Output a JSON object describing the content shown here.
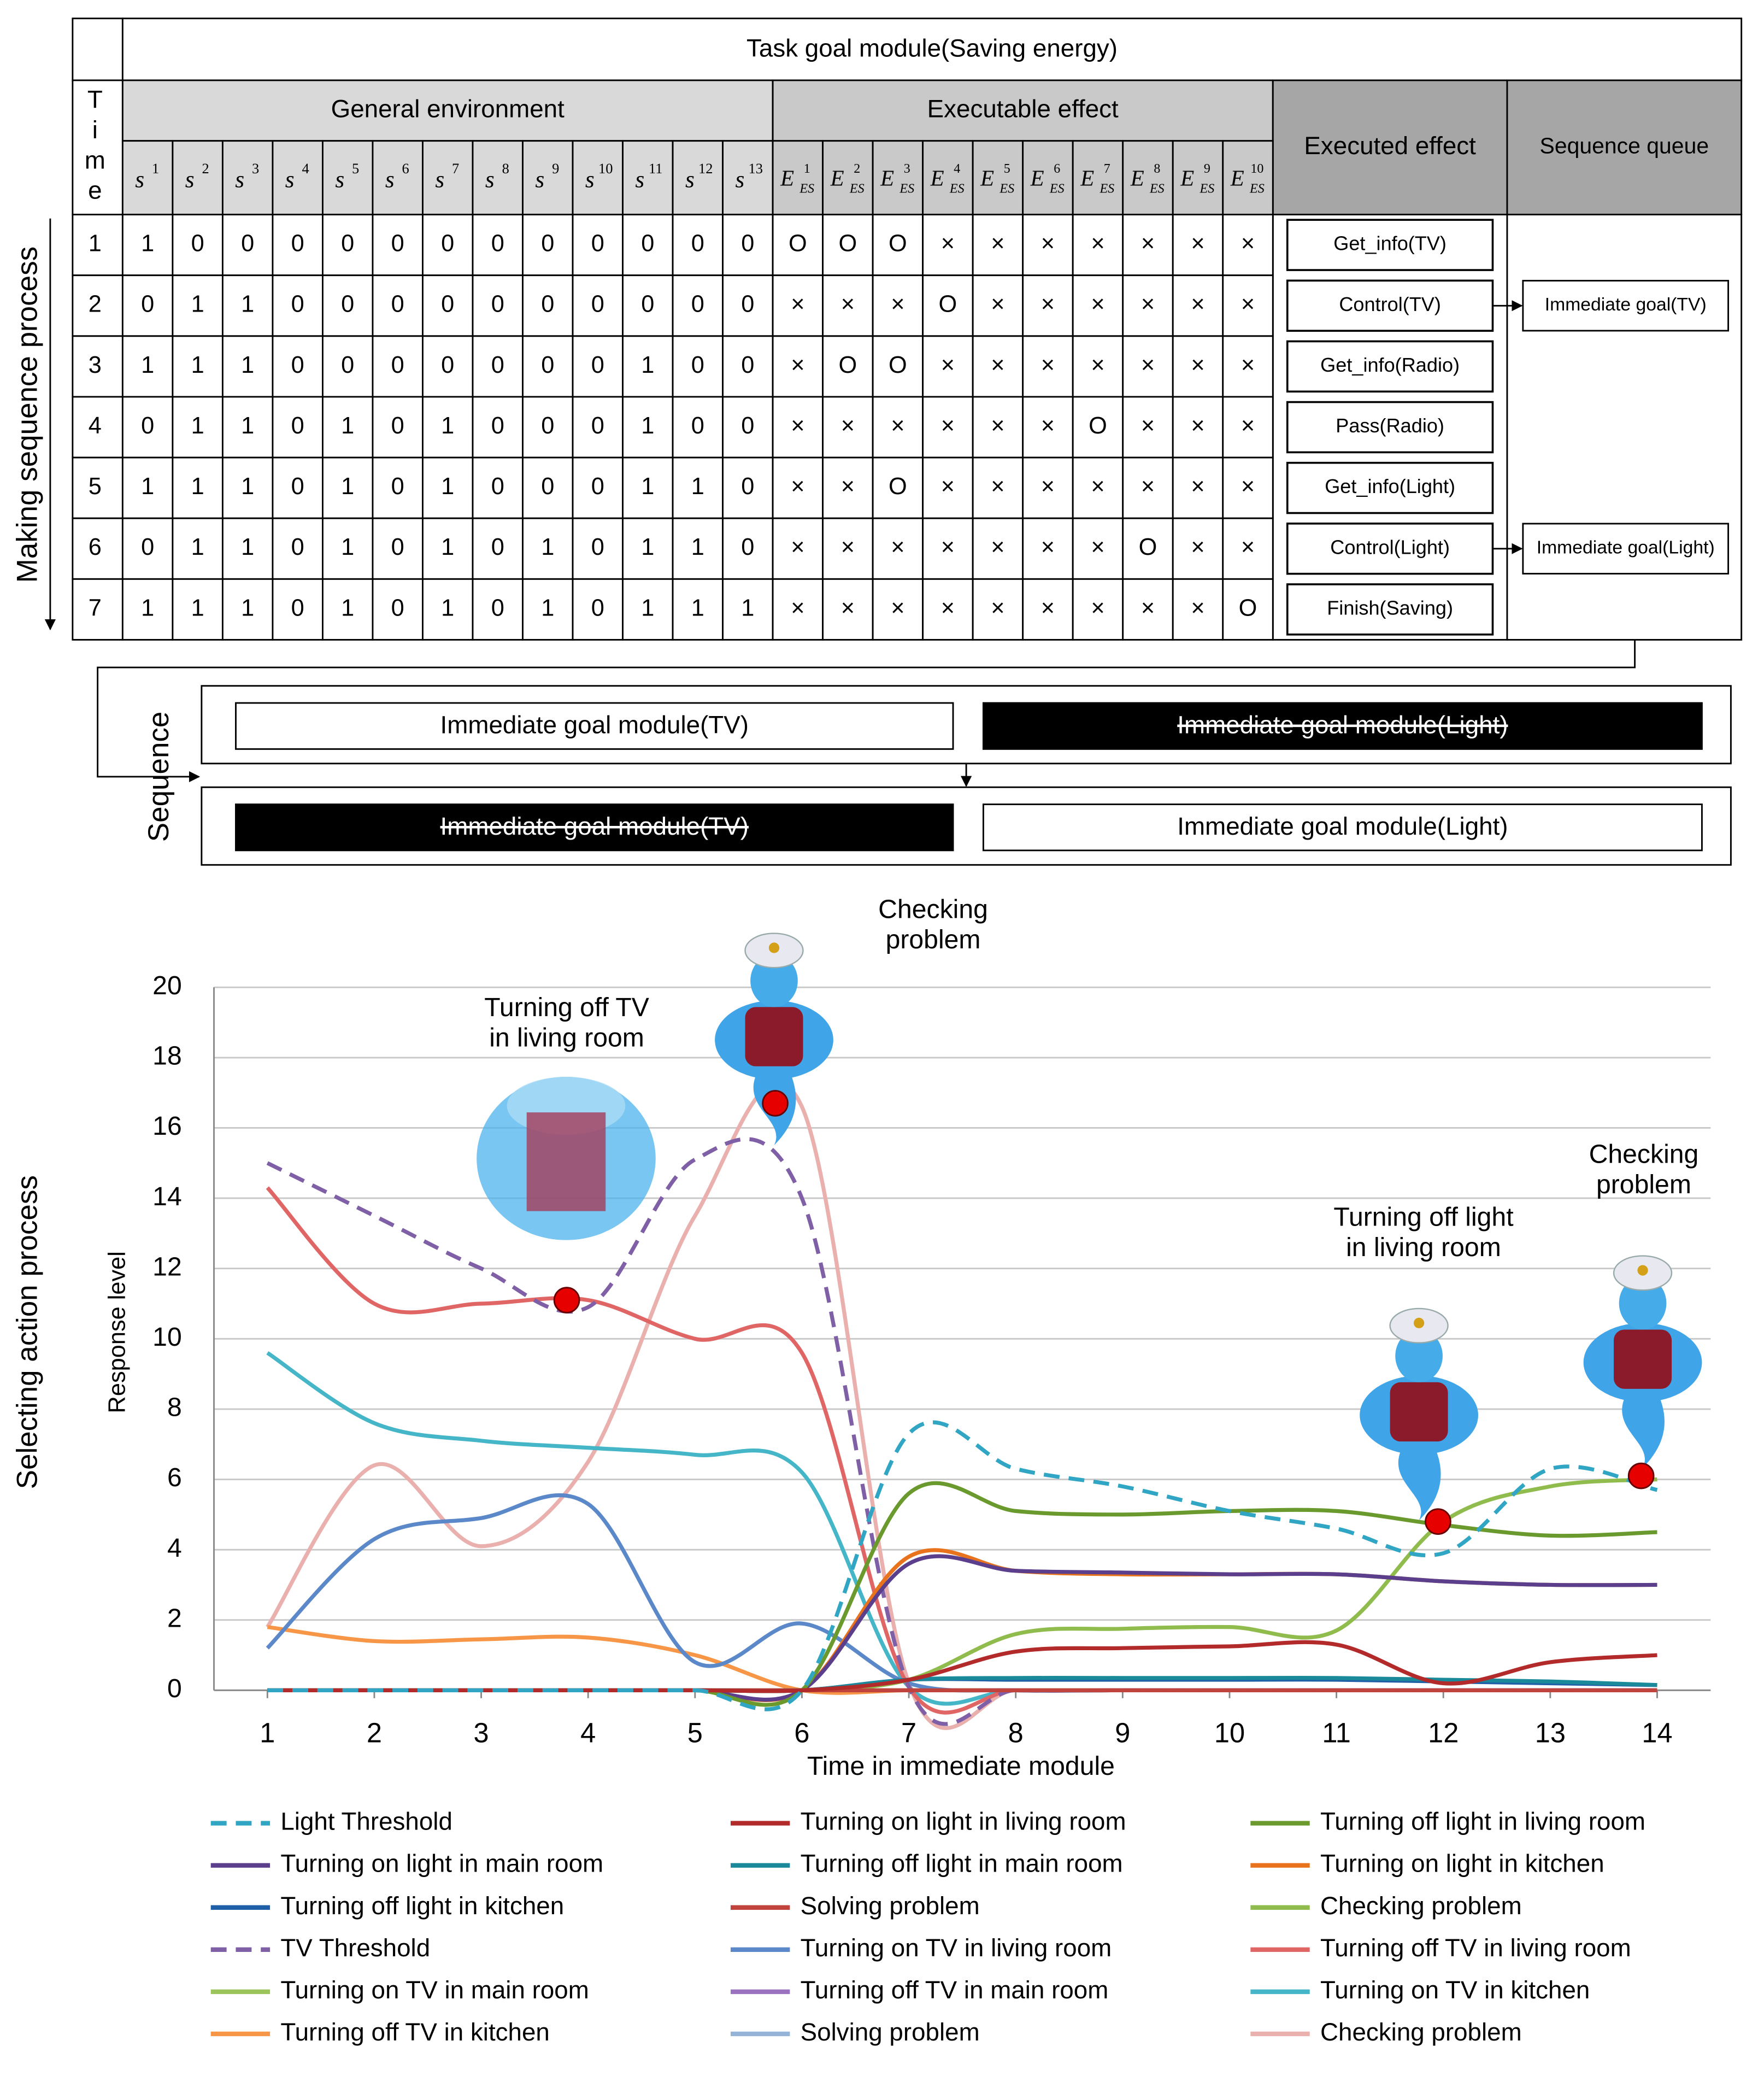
{
  "table": {
    "title": "Task goal module(Saving energy)",
    "time_header": [
      "T",
      "i",
      "m",
      "e"
    ],
    "group_headers": [
      "General environment",
      "Executable effect"
    ],
    "executed_header": "Executed effect",
    "queue_header": "Sequence queue",
    "s_base": "s",
    "s_sups": [
      "1",
      "2",
      "3",
      "4",
      "5",
      "6",
      "7",
      "8",
      "9",
      "10",
      "11",
      "12",
      "13"
    ],
    "e_base": "E",
    "e_sub": "ES",
    "e_sups": [
      "1",
      "2",
      "3",
      "4",
      "5",
      "6",
      "7",
      "8",
      "9",
      "10"
    ],
    "rows": [
      {
        "time": 1,
        "s": [
          1,
          0,
          0,
          0,
          0,
          0,
          0,
          0,
          0,
          0,
          0,
          0,
          0
        ],
        "e": [
          "O",
          "O",
          "O",
          "×",
          "×",
          "×",
          "×",
          "×",
          "×",
          "×"
        ],
        "effect": "Get_info(TV)"
      },
      {
        "time": 2,
        "s": [
          0,
          1,
          1,
          0,
          0,
          0,
          0,
          0,
          0,
          0,
          0,
          0,
          0
        ],
        "e": [
          "×",
          "×",
          "×",
          "O",
          "×",
          "×",
          "×",
          "×",
          "×",
          "×"
        ],
        "effect": "Control(TV)"
      },
      {
        "time": 3,
        "s": [
          1,
          1,
          1,
          0,
          0,
          0,
          0,
          0,
          0,
          0,
          1,
          0,
          0
        ],
        "e": [
          "×",
          "O",
          "O",
          "×",
          "×",
          "×",
          "×",
          "×",
          "×",
          "×"
        ],
        "effect": "Get_info(Radio)"
      },
      {
        "time": 4,
        "s": [
          0,
          1,
          1,
          0,
          1,
          0,
          1,
          0,
          0,
          0,
          1,
          0,
          0
        ],
        "e": [
          "×",
          "×",
          "×",
          "×",
          "×",
          "×",
          "O",
          "×",
          "×",
          "×"
        ],
        "effect": "Pass(Radio)"
      },
      {
        "time": 5,
        "s": [
          1,
          1,
          1,
          0,
          1,
          0,
          1,
          0,
          0,
          0,
          1,
          1,
          0
        ],
        "e": [
          "×",
          "×",
          "O",
          "×",
          "×",
          "×",
          "×",
          "×",
          "×",
          "×"
        ],
        "effect": "Get_info(Light)"
      },
      {
        "time": 6,
        "s": [
          0,
          1,
          1,
          0,
          1,
          0,
          1,
          0,
          1,
          0,
          1,
          1,
          0
        ],
        "e": [
          "×",
          "×",
          "×",
          "×",
          "×",
          "×",
          "×",
          "O",
          "×",
          "×"
        ],
        "effect": "Control(Light)"
      },
      {
        "time": 7,
        "s": [
          1,
          1,
          1,
          0,
          1,
          0,
          1,
          0,
          1,
          0,
          1,
          1,
          1
        ],
        "e": [
          "×",
          "×",
          "×",
          "×",
          "×",
          "×",
          "×",
          "×",
          "×",
          "O"
        ],
        "effect": "Finish(Saving)"
      }
    ],
    "queue": [
      "Immediate goal(TV)",
      "Immediate goal(Light)"
    ]
  },
  "side_labels": {
    "making": "Making sequence process",
    "selecting": "Selecting action process",
    "sequence": "Sequence"
  },
  "sequence": {
    "rows": [
      [
        {
          "label": "Immediate goal module(TV)",
          "done": false
        },
        {
          "label": "Immediate goal module(Light)",
          "done": true
        }
      ],
      [
        {
          "label": "Immediate goal module(TV)",
          "done": true
        },
        {
          "label": "Immediate goal module(Light)",
          "done": false
        }
      ]
    ]
  },
  "chart_data": {
    "type": "line",
    "xlabel": "Time in immediate module",
    "ylabel": "Response level",
    "x": [
      1,
      2,
      3,
      4,
      5,
      6,
      7,
      8,
      9,
      10,
      11,
      12,
      13,
      14
    ],
    "xlim": [
      0.5,
      14.5
    ],
    "xticks": [
      1,
      2,
      3,
      4,
      5,
      6,
      7,
      8,
      9,
      10,
      11,
      12,
      13,
      14
    ],
    "ylim": [
      0,
      20
    ],
    "yticks": [
      0,
      2,
      4,
      6,
      8,
      10,
      12,
      14,
      16,
      18,
      20
    ],
    "grid": true,
    "series": [
      {
        "name": "Light Threshold",
        "color": "#31a6c4",
        "dash": true,
        "values": [
          0,
          0,
          0,
          0,
          0,
          0,
          7.3,
          6.3,
          5.8,
          5.1,
          4.6,
          3.9,
          6.3,
          5.7
        ]
      },
      {
        "name": "Turning on light in living room",
        "color": "#b22a2a",
        "dash": false,
        "values": [
          0,
          0,
          0,
          0,
          0,
          0,
          0.3,
          1.1,
          1.2,
          1.25,
          1.3,
          0.2,
          0.8,
          1.0
        ]
      },
      {
        "name": "Turning off light in living room",
        "color": "#6a9a2e",
        "dash": false,
        "values": [
          0,
          0,
          0,
          0,
          0,
          0,
          5.6,
          5.1,
          5.0,
          5.1,
          5.1,
          4.7,
          4.4,
          4.5
        ]
      },
      {
        "name": "Turning on light in main room",
        "color": "#5b3f8c",
        "dash": false,
        "values": [
          0,
          0,
          0,
          0,
          0,
          0,
          3.6,
          3.4,
          3.35,
          3.3,
          3.3,
          3.1,
          3.0,
          3.0
        ]
      },
      {
        "name": "Turning off light in main room",
        "color": "#1a8a9a",
        "dash": false,
        "values": [
          0,
          0,
          0,
          0,
          0,
          0,
          0.3,
          0.35,
          0.35,
          0.35,
          0.35,
          0.3,
          0.25,
          0.15
        ]
      },
      {
        "name": "Turning on light in kitchen",
        "color": "#e8731c",
        "dash": false,
        "values": [
          0,
          0,
          0,
          0,
          0,
          0,
          3.8,
          3.4,
          3.3,
          3.3,
          3.3,
          3.1,
          3.0,
          3.0
        ]
      },
      {
        "name": "Turning off light in kitchen",
        "color": "#1f5fa8",
        "dash": false,
        "values": [
          0,
          0,
          0,
          0,
          0,
          0,
          0.3,
          0.3,
          0.3,
          0.3,
          0.3,
          0.25,
          0.2,
          0.15
        ]
      },
      {
        "name": "Solving problem",
        "color": "#c0443d",
        "dash": false,
        "values": [
          0,
          0,
          0,
          0,
          0,
          0,
          0,
          0,
          0,
          0,
          0,
          0,
          0,
          0
        ]
      },
      {
        "name": "Checking problem",
        "color": "#8fbc4c",
        "dash": false,
        "values": [
          0,
          0,
          0,
          0,
          0,
          0,
          0.3,
          1.6,
          1.75,
          1.8,
          1.7,
          4.8,
          5.8,
          6.0
        ]
      },
      {
        "name": "TV Threshold",
        "color": "#7f5fa6",
        "dash": true,
        "values": [
          15.0,
          13.5,
          12.0,
          10.9,
          15.1,
          14.0,
          0.1,
          0,
          0,
          0,
          0,
          0,
          0,
          0
        ]
      },
      {
        "name": "Turning on TV in living room",
        "color": "#5b88c8",
        "dash": false,
        "values": [
          1.2,
          4.3,
          4.9,
          5.3,
          0.8,
          1.9,
          0.2,
          0,
          0,
          0,
          0,
          0,
          0,
          0
        ]
      },
      {
        "name": "Turning off TV in living room",
        "color": "#e06666",
        "dash": false,
        "values": [
          14.3,
          11.0,
          11.0,
          11.1,
          10.0,
          9.6,
          0.1,
          0,
          0,
          0,
          0,
          0,
          0,
          0
        ]
      },
      {
        "name": "Turning on TV in main room",
        "color": "#9bc45a",
        "dash": false,
        "values": [
          0,
          0,
          0,
          0,
          0,
          0,
          0,
          0,
          0,
          0,
          0,
          0,
          0,
          0
        ]
      },
      {
        "name": "Turning off TV in main room",
        "color": "#9b72c0",
        "dash": false,
        "values": [
          0,
          0,
          0,
          0,
          0,
          0,
          0,
          0,
          0,
          0,
          0,
          0,
          0,
          0
        ]
      },
      {
        "name": "Turning on TV in kitchen",
        "color": "#45b5c8",
        "dash": false,
        "values": [
          9.6,
          7.6,
          7.1,
          6.9,
          6.7,
          6.2,
          0.1,
          0,
          0,
          0,
          0,
          0,
          0,
          0
        ]
      },
      {
        "name": "Turning off TV in kitchen",
        "color": "#f79646",
        "dash": false,
        "values": [
          1.8,
          1.4,
          1.45,
          1.5,
          1.0,
          0,
          0,
          0,
          0,
          0,
          0,
          0,
          0,
          0
        ]
      },
      {
        "name": "Solving problem",
        "color": "#95b3d7",
        "dash": false,
        "values": [
          0,
          0,
          0,
          0,
          0,
          0,
          0,
          0,
          0,
          0,
          0,
          0,
          0,
          0
        ]
      },
      {
        "name": "Checking problem",
        "color": "#eab0ae",
        "dash": false,
        "values": [
          1.8,
          6.4,
          4.1,
          6.5,
          13.5,
          16.6,
          0.2,
          0,
          0,
          0,
          0,
          0,
          0,
          0
        ]
      }
    ],
    "highlights": [
      {
        "x": 3.8,
        "y": 11.1,
        "label": [
          "Turning off TV",
          "in living room"
        ]
      },
      {
        "x": 5.75,
        "y": 16.7,
        "label": [
          "Checking",
          "problem"
        ]
      },
      {
        "x": 11.95,
        "y": 4.8,
        "label": [
          "Turning off light",
          "in living room"
        ]
      },
      {
        "x": 13.85,
        "y": 6.1,
        "label": [
          "Checking",
          "problem"
        ]
      }
    ]
  }
}
